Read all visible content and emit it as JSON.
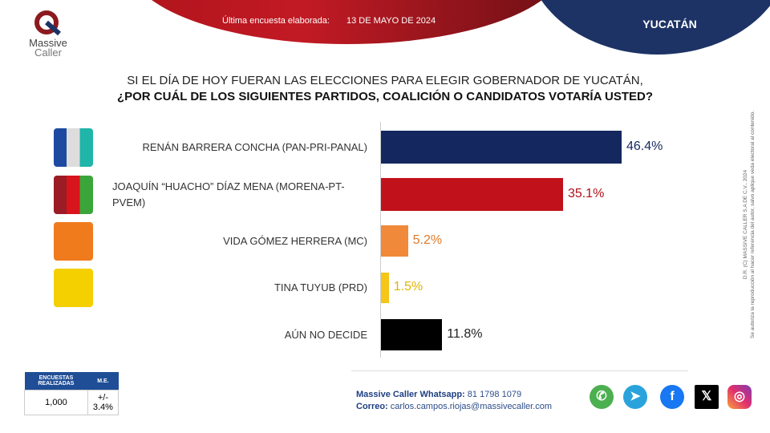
{
  "header": {
    "survey_label": "Última encuesta elaborada:",
    "survey_date": "13 DE MAYO DE 2024",
    "state": "YUCATÁN",
    "logo_line1": "Massive",
    "logo_line2": "Caller"
  },
  "question": {
    "line1": "SI EL DÍA DE HOY FUERAN LAS ELECCIONES PARA ELEGIR GOBERNADOR DE YUCATÁN,",
    "line2": "¿POR CUÁL DE LOS SIGUIENTES PARTIDOS, COALICIÓN  O CANDIDATOS VOTARÍA USTED?"
  },
  "chart_data": {
    "type": "bar",
    "orientation": "horizontal",
    "categories": [
      "RENÁN BARRERA CONCHA  (PAN-PRI-PANAL)",
      "JOAQUÍN “HUACHO” DÍAZ MENA  (MORENA-PT-PVEM)",
      "VIDA GÓMEZ HERRERA (MC)",
      "TINA TUYUB (PRD)",
      "AÚN NO DECIDE"
    ],
    "values": [
      46.4,
      35.1,
      5.2,
      1.5,
      11.8
    ],
    "labels": [
      "46.4%",
      "35.1%",
      "5.2%",
      "1.5%",
      "11.8%"
    ],
    "colors": [
      "#14285f",
      "#c1121c",
      "#f08a3a",
      "#f5c518",
      "#000000"
    ],
    "label_colors": [
      "#14285f",
      "#b01018",
      "#e07a2a",
      "#e0b400",
      "#222222"
    ],
    "party_logos": [
      "PAN-PRI-PANAL",
      "MORENA-PT-PVEM",
      "MC",
      "PRD",
      ""
    ],
    "grid": false
  },
  "stats": {
    "h1": "ENCUESTAS REALIZADAS",
    "h2": "M.E.",
    "v1": "1,000",
    "v2": "+/- 3.4%"
  },
  "contact": {
    "wa_label": "Massive Caller Whatsapp:",
    "wa_value": " 81 1798 1079",
    "mail_label": "Correo:",
    "mail_value": " carlos.campos.riojas@massivecaller.com"
  },
  "legal": {
    "line1": "D.R. (C) MASSIVE CALLER S.A DE C.V., 2024",
    "line2": "Se autoriza la reproducción al hacer referencia del autor, salvo aplique veda electoral al contenido."
  },
  "social": [
    "whatsapp",
    "telegram",
    "facebook",
    "x",
    "instagram"
  ]
}
